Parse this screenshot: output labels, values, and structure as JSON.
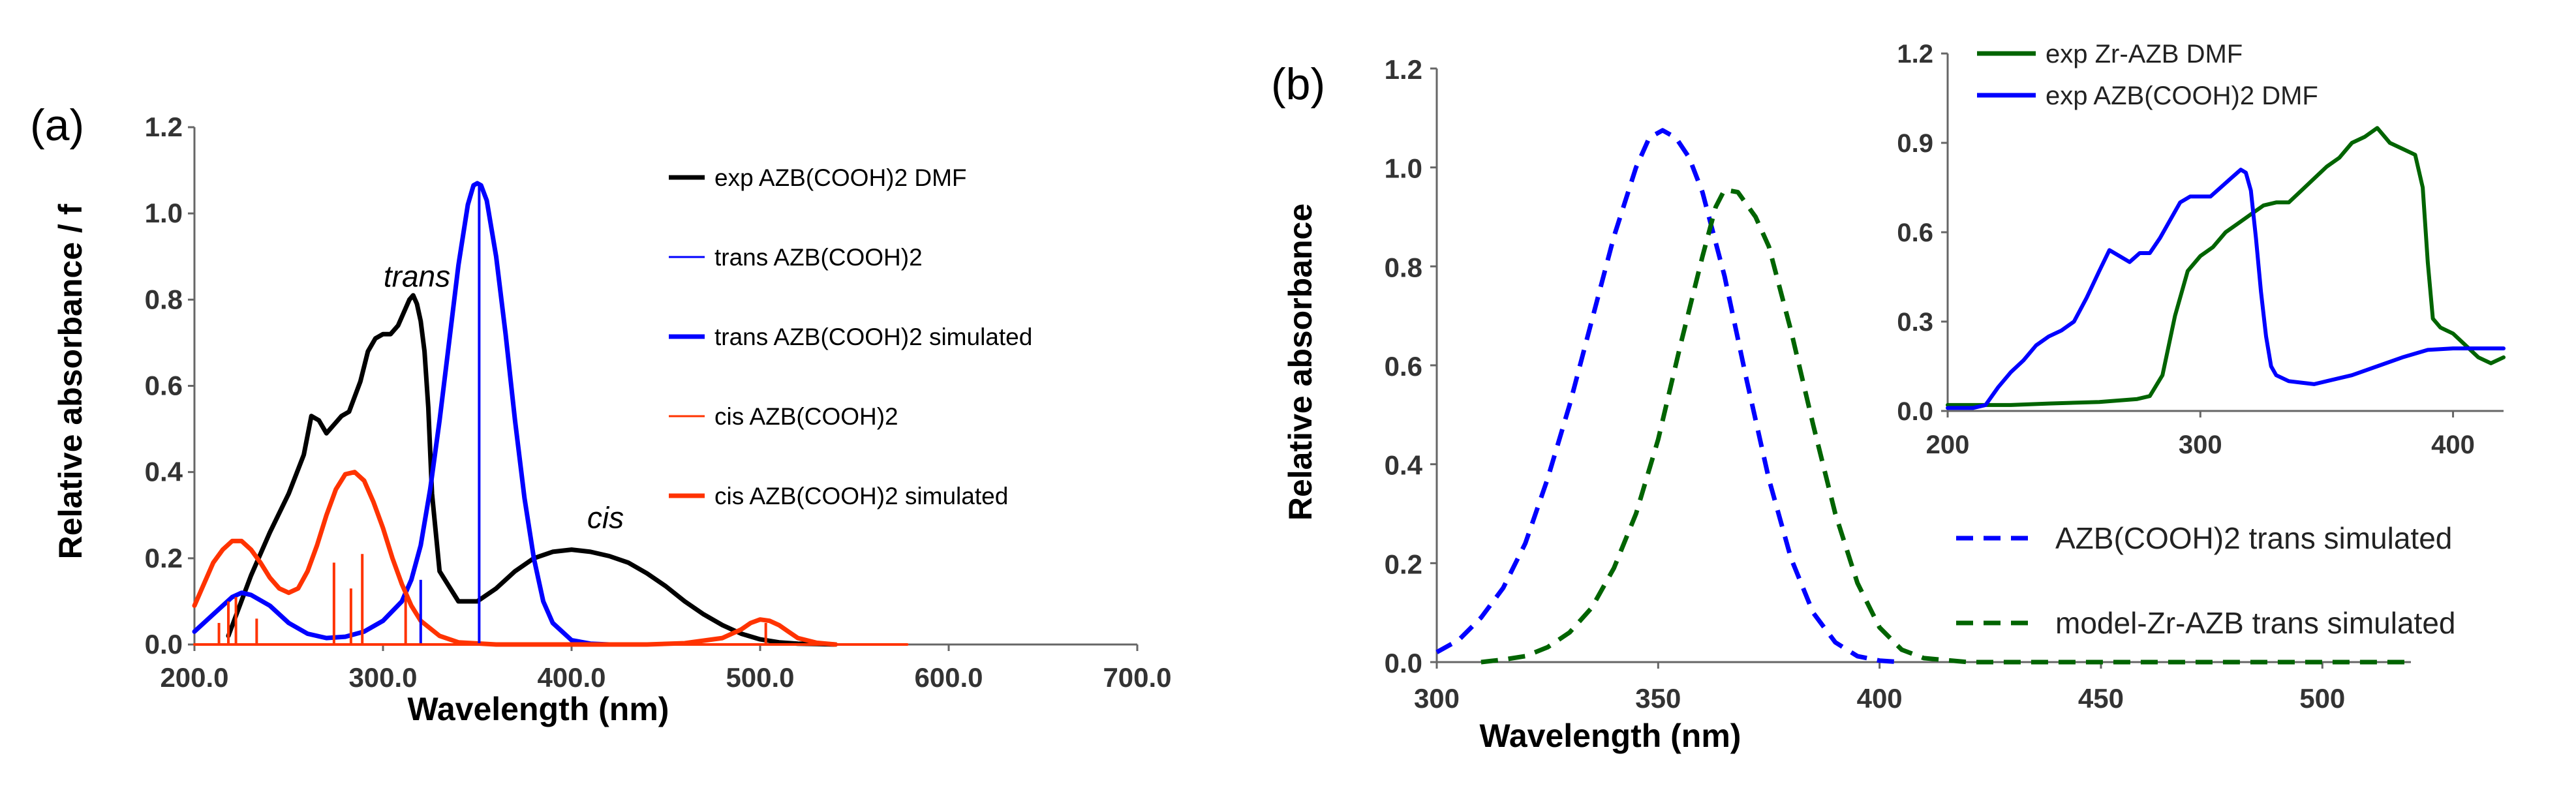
{
  "chart_data": [
    {
      "type": "line",
      "panel_label": "(a)",
      "xlabel": "Wavelength (nm)",
      "ylabel": "Relative absorbance / f",
      "xlim": [
        200,
        700
      ],
      "ylim": [
        0,
        1.2
      ],
      "x_ticks": [
        "200.0",
        "300.0",
        "400.0",
        "500.0",
        "600.0",
        "700.0"
      ],
      "y_ticks": [
        "0.0",
        "0.2",
        "0.4",
        "0.6",
        "0.8",
        "1.0",
        "1.2"
      ],
      "annotations": [
        {
          "text": "trans",
          "x": 318,
          "y": 0.83
        },
        {
          "text": "cis",
          "x": 418,
          "y": 0.27
        }
      ],
      "legend": [
        {
          "label": "exp AZB(COOH)2 DMF",
          "color": "#000000",
          "style": "thick"
        },
        {
          "label": "trans AZB(COOH)2",
          "color": "#0000ff",
          "style": "thin"
        },
        {
          "label": "trans AZB(COOH)2 simulated",
          "color": "#0000ff",
          "style": "thick"
        },
        {
          "label": "cis AZB(COOH)2",
          "color": "#ff3300",
          "style": "thin"
        },
        {
          "label": "cis AZB(COOH)2 simulated",
          "color": "#ff3300",
          "style": "thick"
        }
      ],
      "series": [
        {
          "name": "exp AZB(COOH)2 DMF",
          "color": "#000000",
          "width": 7,
          "x": [
            218,
            230,
            240,
            250,
            258,
            262,
            266,
            270,
            274,
            278,
            282,
            288,
            292,
            296,
            300,
            304,
            308,
            312,
            314,
            316,
            318,
            320,
            322,
            324,
            326,
            330,
            340,
            350,
            360,
            370,
            380,
            390,
            400,
            410,
            420,
            430,
            440,
            450,
            460,
            470,
            480,
            490,
            500,
            510,
            520,
            530,
            540
          ],
          "y": [
            0.02,
            0.16,
            0.26,
            0.35,
            0.44,
            0.53,
            0.52,
            0.49,
            0.51,
            0.53,
            0.54,
            0.61,
            0.68,
            0.71,
            0.72,
            0.72,
            0.74,
            0.78,
            0.8,
            0.81,
            0.79,
            0.75,
            0.68,
            0.55,
            0.35,
            0.17,
            0.1,
            0.1,
            0.13,
            0.17,
            0.2,
            0.215,
            0.22,
            0.215,
            0.205,
            0.19,
            0.165,
            0.135,
            0.1,
            0.07,
            0.045,
            0.025,
            0.012,
            0.005,
            0.002,
            0.001,
            0.0
          ]
        },
        {
          "name": "trans AZB(COOH)2 simulated",
          "color": "#0000ff",
          "width": 7,
          "x": [
            200,
            210,
            220,
            225,
            230,
            240,
            250,
            260,
            270,
            280,
            290,
            300,
            310,
            315,
            320,
            325,
            330,
            335,
            340,
            345,
            348,
            350,
            352,
            355,
            360,
            365,
            370,
            375,
            380,
            385,
            390,
            400,
            410,
            420
          ],
          "y": [
            0.03,
            0.07,
            0.11,
            0.12,
            0.115,
            0.09,
            0.05,
            0.025,
            0.015,
            0.018,
            0.03,
            0.055,
            0.1,
            0.15,
            0.23,
            0.36,
            0.52,
            0.7,
            0.88,
            1.02,
            1.065,
            1.07,
            1.065,
            1.03,
            0.9,
            0.72,
            0.52,
            0.34,
            0.2,
            0.1,
            0.05,
            0.01,
            0.002,
            0.0
          ]
        },
        {
          "name": "cis AZB(COOH)2 simulated",
          "color": "#ff3300",
          "width": 7,
          "x": [
            200,
            205,
            210,
            215,
            220,
            225,
            230,
            235,
            240,
            245,
            250,
            255,
            260,
            265,
            270,
            275,
            280,
            285,
            290,
            295,
            300,
            305,
            310,
            315,
            320,
            330,
            340,
            360,
            400,
            440,
            460,
            480,
            490,
            495,
            500,
            505,
            510,
            515,
            520,
            530,
            540
          ],
          "y": [
            0.09,
            0.14,
            0.19,
            0.22,
            0.24,
            0.24,
            0.22,
            0.19,
            0.155,
            0.13,
            0.12,
            0.13,
            0.17,
            0.23,
            0.3,
            0.36,
            0.395,
            0.4,
            0.38,
            0.33,
            0.27,
            0.2,
            0.14,
            0.09,
            0.055,
            0.02,
            0.005,
            0.0,
            0.0,
            0.0,
            0.003,
            0.015,
            0.035,
            0.05,
            0.058,
            0.055,
            0.045,
            0.03,
            0.015,
            0.004,
            0.0
          ]
        },
        {
          "name": "trans AZB(COOH)2",
          "color": "#0000ff",
          "width": 4,
          "type": "sticks",
          "x": [
            320,
            351
          ],
          "y": [
            0.15,
            1.07
          ]
        },
        {
          "name": "cis AZB(COOH)2",
          "color": "#ff3300",
          "width": 4,
          "type": "sticks",
          "x": [
            213,
            218,
            222,
            233,
            274,
            283,
            289,
            312,
            503
          ],
          "y": [
            0.05,
            0.1,
            0.11,
            0.06,
            0.19,
            0.13,
            0.21,
            0.11,
            0.05
          ]
        },
        {
          "name": "baseline",
          "color": "#ff3300",
          "width": 4,
          "x": [
            200,
            578
          ],
          "y": [
            0.0,
            0.0
          ]
        }
      ]
    },
    {
      "type": "line",
      "panel_label": "(b)",
      "xlabel": "Wavelength (nm)",
      "ylabel": "Relative absorbance",
      "xlim": [
        300,
        520
      ],
      "ylim": [
        0,
        1.2
      ],
      "x_ticks": [
        "300",
        "350",
        "400",
        "450",
        "500"
      ],
      "y_ticks": [
        "0.0",
        "0.2",
        "0.4",
        "0.6",
        "0.8",
        "1.0",
        "1.2"
      ],
      "legend": [
        {
          "label": "AZB(COOH)2 trans simulated",
          "color": "#0000ff",
          "style": "dashed"
        },
        {
          "label": "model-Zr-AZB trans simulated",
          "color": "#006400",
          "style": "dashed"
        }
      ],
      "series": [
        {
          "name": "AZB(COOH)2 trans simulated",
          "color": "#0000ff",
          "width": 7,
          "dashed": true,
          "x": [
            300,
            305,
            310,
            315,
            320,
            325,
            330,
            335,
            340,
            345,
            348,
            351,
            354,
            357,
            360,
            365,
            370,
            375,
            380,
            385,
            390,
            395,
            400,
            405
          ],
          "y": [
            0.02,
            0.045,
            0.09,
            0.15,
            0.24,
            0.37,
            0.52,
            0.69,
            0.86,
            1.0,
            1.06,
            1.075,
            1.06,
            1.02,
            0.95,
            0.78,
            0.57,
            0.37,
            0.21,
            0.1,
            0.04,
            0.012,
            0.003,
            0.0
          ]
        },
        {
          "name": "model-Zr-AZB trans simulated",
          "color": "#006400",
          "width": 7,
          "dashed": true,
          "x": [
            310,
            315,
            320,
            325,
            330,
            335,
            340,
            345,
            350,
            355,
            360,
            363,
            365,
            368,
            372,
            375,
            380,
            385,
            390,
            395,
            400,
            405,
            410,
            420,
            520
          ],
          "y": [
            0.0,
            0.005,
            0.012,
            0.03,
            0.06,
            0.11,
            0.19,
            0.3,
            0.45,
            0.64,
            0.82,
            0.92,
            0.955,
            0.95,
            0.9,
            0.84,
            0.67,
            0.48,
            0.3,
            0.16,
            0.07,
            0.025,
            0.008,
            0.0,
            0.0
          ]
        }
      ]
    },
    {
      "type": "line",
      "panel_label": "inset",
      "xlim": [
        200,
        420
      ],
      "ylim": [
        0,
        1.2
      ],
      "x_ticks": [
        "200",
        "300",
        "400"
      ],
      "y_ticks": [
        "0.0",
        "0.3",
        "0.6",
        "0.9",
        "1.2"
      ],
      "legend": [
        {
          "label": "exp Zr-AZB DMF",
          "color": "#006400",
          "style": "solid"
        },
        {
          "label": "exp AZB(COOH)2 DMF",
          "color": "#0000ff",
          "style": "solid"
        }
      ],
      "series": [
        {
          "name": "exp Zr-AZB DMF",
          "color": "#006400",
          "width": 6,
          "x": [
            200,
            215,
            225,
            240,
            260,
            275,
            280,
            285,
            290,
            295,
            300,
            305,
            310,
            315,
            320,
            325,
            330,
            335,
            340,
            345,
            350,
            355,
            360,
            365,
            370,
            375,
            380,
            385,
            388,
            390,
            392,
            395,
            400,
            405,
            410,
            415,
            420
          ],
          "y": [
            0.02,
            0.02,
            0.02,
            0.025,
            0.03,
            0.04,
            0.05,
            0.12,
            0.32,
            0.47,
            0.52,
            0.55,
            0.6,
            0.63,
            0.66,
            0.69,
            0.7,
            0.7,
            0.74,
            0.78,
            0.82,
            0.85,
            0.9,
            0.92,
            0.95,
            0.9,
            0.88,
            0.86,
            0.75,
            0.5,
            0.31,
            0.28,
            0.26,
            0.22,
            0.18,
            0.16,
            0.18
          ]
        },
        {
          "name": "exp AZB(COOH)2 DMF",
          "color": "#0000ff",
          "width": 6,
          "x": [
            200,
            205,
            210,
            215,
            220,
            225,
            230,
            235,
            240,
            245,
            250,
            255,
            260,
            264,
            268,
            272,
            276,
            280,
            284,
            288,
            292,
            296,
            300,
            304,
            308,
            312,
            316,
            318,
            320,
            322,
            324,
            326,
            328,
            330,
            335,
            340,
            345,
            350,
            360,
            370,
            380,
            390,
            400,
            410,
            420
          ],
          "y": [
            0.01,
            0.01,
            0.01,
            0.02,
            0.08,
            0.13,
            0.17,
            0.22,
            0.25,
            0.27,
            0.3,
            0.38,
            0.47,
            0.54,
            0.52,
            0.5,
            0.53,
            0.53,
            0.58,
            0.64,
            0.7,
            0.72,
            0.72,
            0.72,
            0.75,
            0.78,
            0.81,
            0.8,
            0.74,
            0.58,
            0.4,
            0.25,
            0.15,
            0.12,
            0.1,
            0.095,
            0.09,
            0.1,
            0.12,
            0.15,
            0.18,
            0.205,
            0.21,
            0.21,
            0.21
          ]
        }
      ]
    }
  ]
}
